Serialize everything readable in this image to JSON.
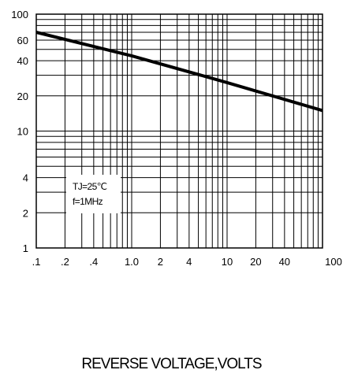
{
  "chart_data": {
    "type": "line",
    "xlabel": "REVERSE VOLTAGE,VOLTS",
    "ylabel": "",
    "x_scale": "log",
    "y_scale": "log",
    "xlim": [
      0.1,
      100
    ],
    "ylim": [
      1,
      100
    ],
    "grid": true,
    "x_tick_labels": [
      {
        "value": 0.1,
        "label": ".1"
      },
      {
        "value": 0.2,
        "label": ".2"
      },
      {
        "value": 0.4,
        "label": ".4"
      },
      {
        "value": 1.0,
        "label": "1.0"
      },
      {
        "value": 2,
        "label": "2"
      },
      {
        "value": 4,
        "label": "4"
      },
      {
        "value": 10,
        "label": "10"
      },
      {
        "value": 20,
        "label": "20"
      },
      {
        "value": 40,
        "label": "40"
      },
      {
        "value": 100,
        "label": "100"
      }
    ],
    "y_tick_labels": [
      {
        "value": 1,
        "label": "1"
      },
      {
        "value": 2,
        "label": "2"
      },
      {
        "value": 4,
        "label": "4"
      },
      {
        "value": 10,
        "label": "10"
      },
      {
        "value": 20,
        "label": "20"
      },
      {
        "value": 40,
        "label": "40"
      },
      {
        "value": 60,
        "label": "60"
      },
      {
        "value": 100,
        "label": "100"
      }
    ],
    "annotations": [
      "TJ=25℃",
      "f=1MHz"
    ],
    "series": [
      {
        "x": [
          0.1,
          1.0,
          10,
          100
        ],
        "y": [
          70,
          44,
          26,
          15
        ]
      }
    ],
    "line_color": "#000000"
  }
}
